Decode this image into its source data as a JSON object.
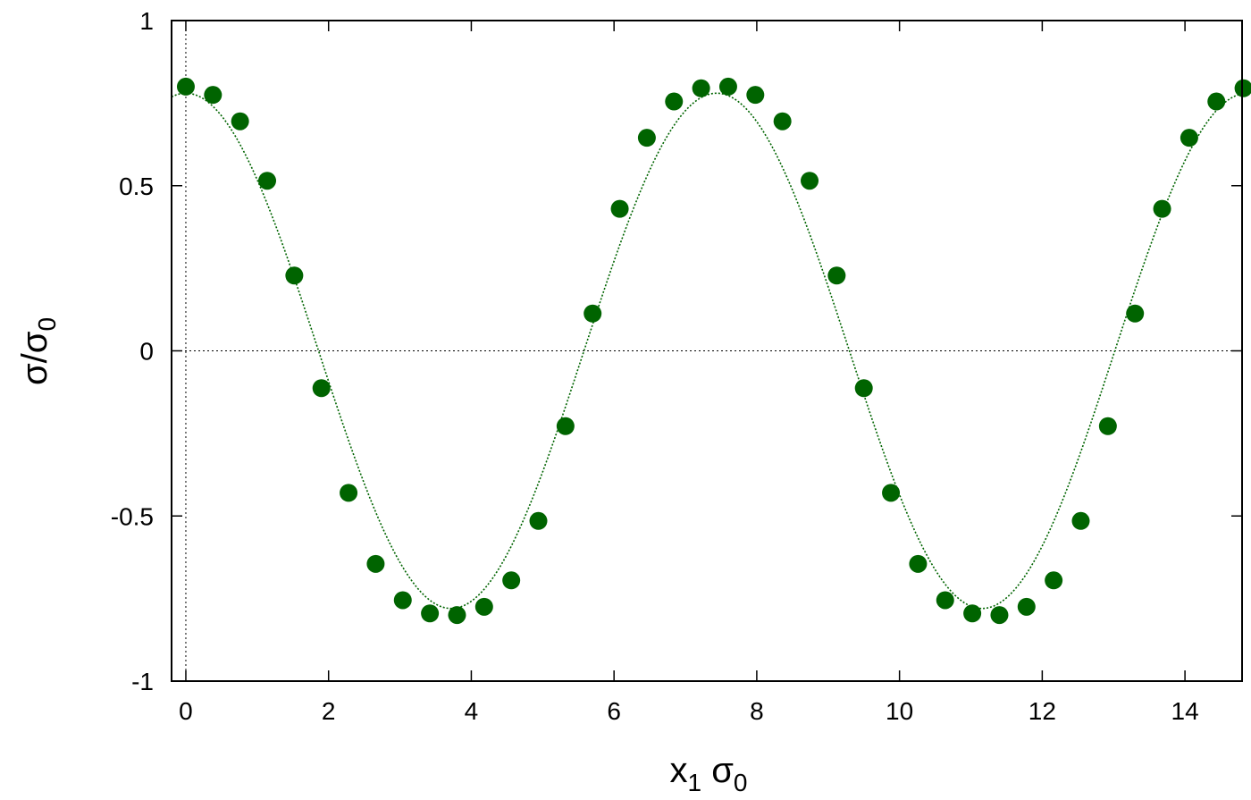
{
  "chart_data": {
    "type": "scatter",
    "xlabel": {
      "main": "x",
      "sub1": "1",
      "mid": " σ",
      "sub2": "0"
    },
    "ylabel": {
      "main": "σ/σ",
      "sub": "0"
    },
    "xlim": [
      -0.2,
      14.8
    ],
    "ylim": [
      -1,
      1
    ],
    "xticks": [
      0,
      2,
      4,
      6,
      8,
      10,
      12,
      14
    ],
    "xtick_labels": [
      "0",
      "2",
      "4",
      "6",
      "8",
      "10",
      "12",
      "14"
    ],
    "yticks": [
      -1,
      -0.5,
      0,
      0.5,
      1
    ],
    "ytick_labels": [
      "-1",
      "-0.5",
      "0",
      "0.5",
      "1"
    ],
    "grid": false,
    "reference_lines": {
      "x": 0,
      "y": 0
    },
    "colors": {
      "series": "#006400",
      "axis": "#000000",
      "reference": "#000000"
    },
    "series": [
      {
        "type": "scatter",
        "x": [
          0,
          0.38,
          0.76,
          1.14,
          1.52,
          1.9,
          2.28,
          2.66,
          3.04,
          3.42,
          3.8,
          4.18,
          4.56,
          4.94,
          5.32,
          5.7,
          6.08,
          6.46,
          6.84,
          7.22,
          7.6,
          7.98,
          8.36,
          8.74,
          9.12,
          9.5,
          9.88,
          10.26,
          10.64,
          11.02,
          11.4,
          11.78,
          12.16,
          12.54,
          12.92,
          13.3,
          13.68,
          14.06,
          14.44,
          14.82
        ],
        "y": [
          0.8,
          0.775,
          0.695,
          0.515,
          0.228,
          -0.113,
          -0.43,
          -0.645,
          -0.755,
          -0.795,
          -0.8,
          -0.775,
          -0.695,
          -0.515,
          -0.228,
          0.113,
          0.43,
          0.645,
          0.755,
          0.795,
          0.8,
          0.775,
          0.695,
          0.515,
          0.228,
          -0.113,
          -0.43,
          -0.645,
          -0.755,
          -0.795,
          -0.8,
          -0.775,
          -0.695,
          -0.515,
          -0.228,
          0.113,
          0.43,
          0.645,
          0.755,
          0.795
        ]
      },
      {
        "type": "line",
        "style": "dotted",
        "function": "0.78*cos(0.8447*x)",
        "amplitude": 0.78,
        "wavenumber": 0.8447
      }
    ]
  }
}
